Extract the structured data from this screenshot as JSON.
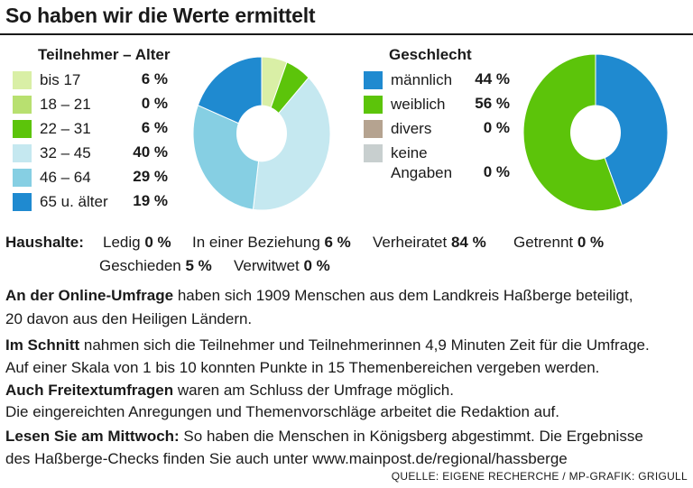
{
  "title": "So haben wir die Werte ermittelt",
  "chart_data": [
    {
      "type": "pie",
      "title": "Teilnehmer – Alter",
      "categories": [
        "bis 17",
        "18 – 21",
        "22 – 31",
        "32 – 45",
        "46 – 64",
        "65 u. älter"
      ],
      "values": [
        6,
        0,
        6,
        40,
        29,
        19
      ],
      "value_labels": [
        "6 %",
        "0 %",
        "6 %",
        "40 %",
        "29 %",
        "19 %"
      ],
      "colors": [
        "#d9efa6",
        "#b8e070",
        "#5cc40a",
        "#c5e8f0",
        "#86cfe3",
        "#1f8ad0"
      ]
    },
    {
      "type": "pie",
      "title": "Geschlecht",
      "categories": [
        "männlich",
        "weiblich",
        "divers",
        "keine Angaben"
      ],
      "label_lines": [
        [
          "männlich"
        ],
        [
          "weiblich"
        ],
        [
          "divers"
        ],
        [
          "keine",
          "Angaben"
        ]
      ],
      "values": [
        44,
        56,
        0,
        0
      ],
      "value_labels": [
        "44 %",
        "56 %",
        "0 %",
        "0 %"
      ],
      "colors": [
        "#1f8ad0",
        "#5cc40a",
        "#b5a390",
        "#c8cfcf"
      ]
    }
  ],
  "haushalte": {
    "label": "Haushalte:",
    "items": [
      {
        "name": "Ledig",
        "value": "0 %"
      },
      {
        "name": "In einer Beziehung",
        "value": "6 %"
      },
      {
        "name": "Verheiratet",
        "value": "84 %"
      },
      {
        "name": "Getrennt",
        "value": "0 %"
      },
      {
        "name": "Geschieden",
        "value": "5 %"
      },
      {
        "name": "Verwitwet",
        "value": "0 %"
      }
    ]
  },
  "paragraphs": [
    {
      "bold": "An der Online-Umfrage",
      "text": " haben sich 1909 Menschen aus dem Landkreis Haßberge beteiligt,"
    },
    {
      "bold": "",
      "text": "20 davon aus den Heiligen Ländern."
    },
    {
      "bold": "Im Schnitt",
      "text": " nahmen sich die Teilnehmer und Teilnehmerinnen 4,9 Minuten Zeit für die Umfrage."
    },
    {
      "bold": "",
      "text": "Auf einer Skala von 1 bis 10 konnten Punkte in 15 Themenbereichen vergeben werden."
    },
    {
      "bold": "Auch Freitextumfragen",
      "text": " waren am Schluss der Umfrage möglich."
    },
    {
      "bold": "",
      "text": "Die eingereichten Anregungen und Themenvorschläge arbeitet die Redaktion auf."
    },
    {
      "bold": "Lesen Sie am Mittwoch:",
      "text": " So haben die Menschen in Königsberg abgestimmt. Die Ergebnisse"
    },
    {
      "bold": "",
      "text": "des Haßberge-Checks finden Sie auch unter www.mainpost.de/regional/hassberge"
    }
  ],
  "source": "QUELLE: EIGENE RECHERCHE / MP-GRAFIK: GRIGULL"
}
